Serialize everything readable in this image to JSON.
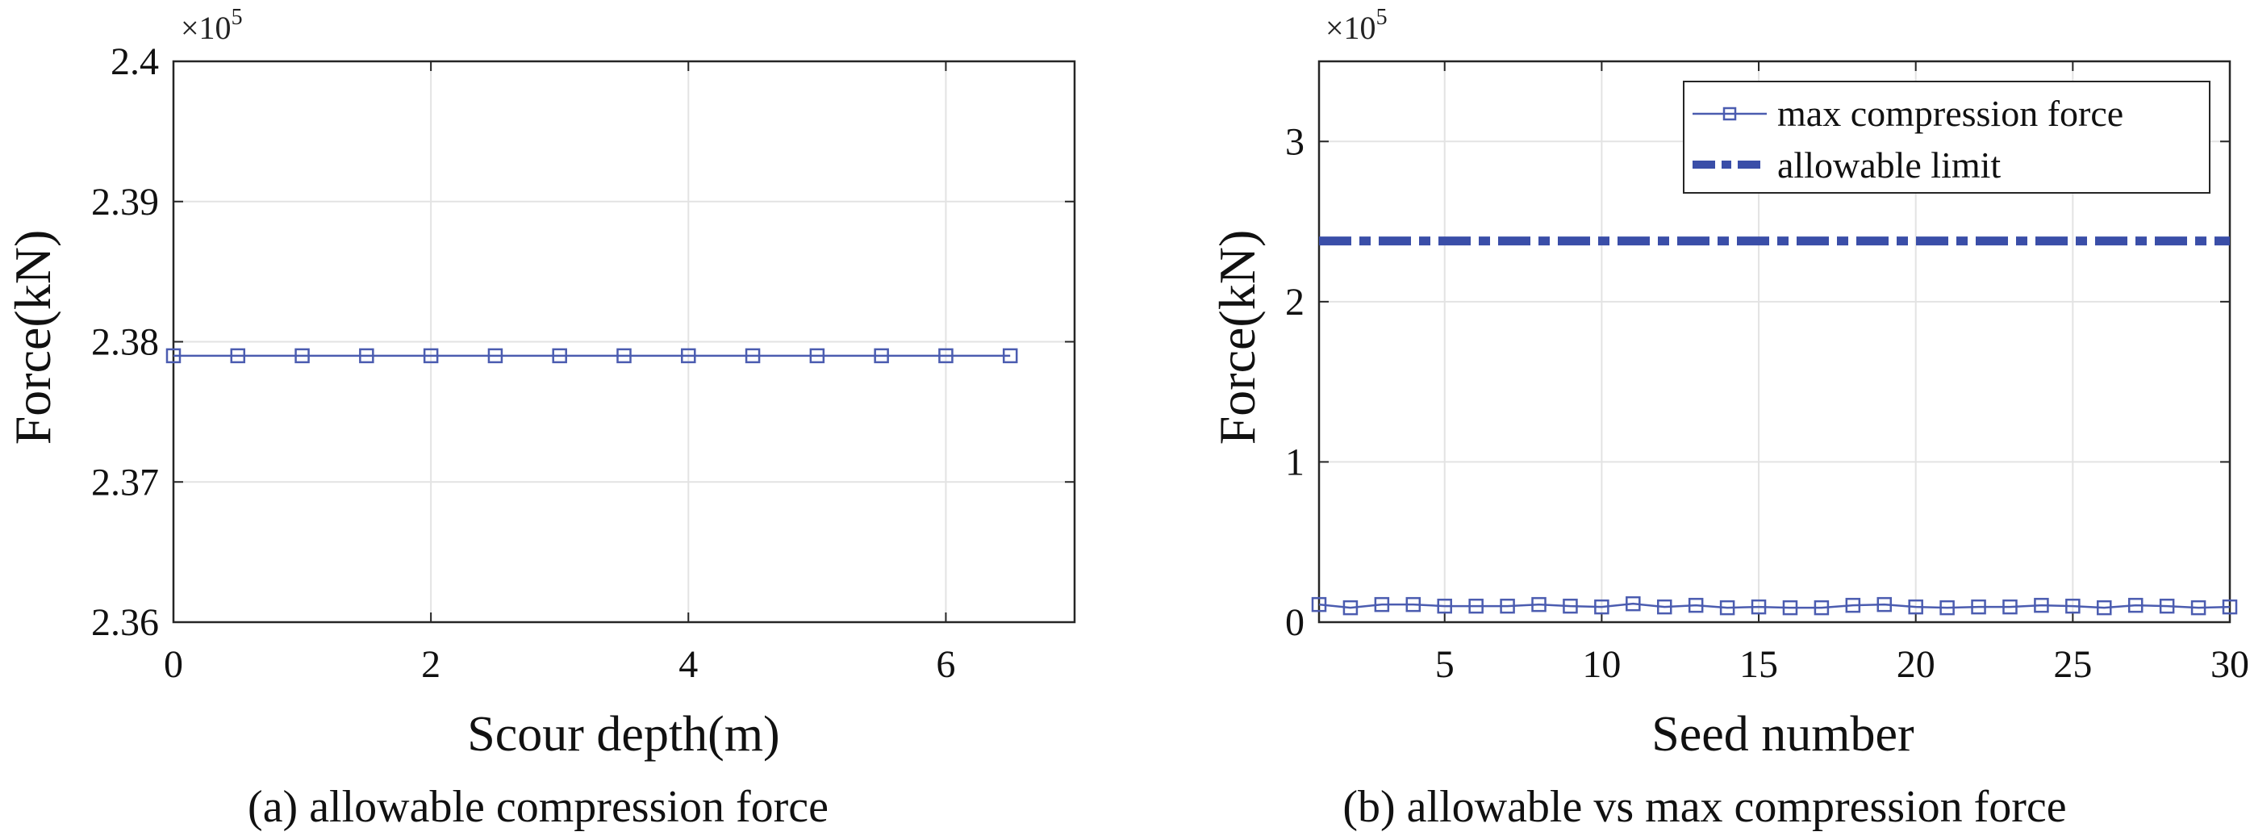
{
  "colors": {
    "series": "#4b5cb0",
    "limit": "#3a4ea8",
    "grid": "#e3e3e3",
    "axis": "#262626"
  },
  "chart_data": [
    {
      "type": "line",
      "caption": "(a) allowable compression force",
      "xlabel": "Scour depth(m)",
      "ylabel": "Force(kN)",
      "y_exponent_label": "×10",
      "y_exponent": "5",
      "xlim": [
        0,
        7
      ],
      "ylim": [
        2.36,
        2.4
      ],
      "xticks": [
        "0",
        "2",
        "4",
        "6"
      ],
      "xtick_values": [
        0,
        2,
        4,
        6
      ],
      "yticks": [
        "2.36",
        "2.37",
        "2.38",
        "2.39",
        "2.4"
      ],
      "ytick_values": [
        2.36,
        2.37,
        2.38,
        2.39,
        2.4
      ],
      "grid": true,
      "series": [
        {
          "marker": "square",
          "x": [
            0,
            0.5,
            1,
            1.5,
            2,
            2.5,
            3,
            3.5,
            4,
            4.5,
            5,
            5.5,
            6,
            6.5
          ],
          "y": [
            2.379,
            2.379,
            2.379,
            2.379,
            2.379,
            2.379,
            2.379,
            2.379,
            2.379,
            2.379,
            2.379,
            2.379,
            2.379,
            2.379
          ]
        }
      ]
    },
    {
      "type": "line",
      "caption": "(b) allowable vs max compression force",
      "xlabel": "Seed number",
      "ylabel": "Force(kN)",
      "y_exponent_label": "×10",
      "y_exponent": "5",
      "xlim": [
        1,
        30
      ],
      "ylim": [
        0,
        3.5
      ],
      "xticks": [
        "5",
        "10",
        "15",
        "20",
        "25",
        "30"
      ],
      "xtick_values": [
        5,
        10,
        15,
        20,
        25,
        30
      ],
      "yticks": [
        "0",
        "1",
        "2",
        "3"
      ],
      "ytick_values": [
        0,
        1,
        2,
        3
      ],
      "grid": true,
      "legend_position": "top-right",
      "series": [
        {
          "name": "max compression force",
          "marker": "square",
          "x": [
            1,
            2,
            3,
            4,
            5,
            6,
            7,
            8,
            9,
            10,
            11,
            12,
            13,
            14,
            15,
            16,
            17,
            18,
            19,
            20,
            21,
            22,
            23,
            24,
            25,
            26,
            27,
            28,
            29,
            30
          ],
          "y": [
            0.11,
            0.09,
            0.11,
            0.11,
            0.1,
            0.1,
            0.1,
            0.11,
            0.1,
            0.095,
            0.115,
            0.095,
            0.105,
            0.09,
            0.095,
            0.09,
            0.09,
            0.105,
            0.11,
            0.095,
            0.09,
            0.095,
            0.095,
            0.105,
            0.1,
            0.09,
            0.105,
            0.1,
            0.09,
            0.095
          ]
        },
        {
          "name": "allowable limit",
          "style": "dash-dot",
          "x": [
            1,
            30
          ],
          "y": [
            2.379,
            2.379
          ]
        }
      ]
    }
  ]
}
